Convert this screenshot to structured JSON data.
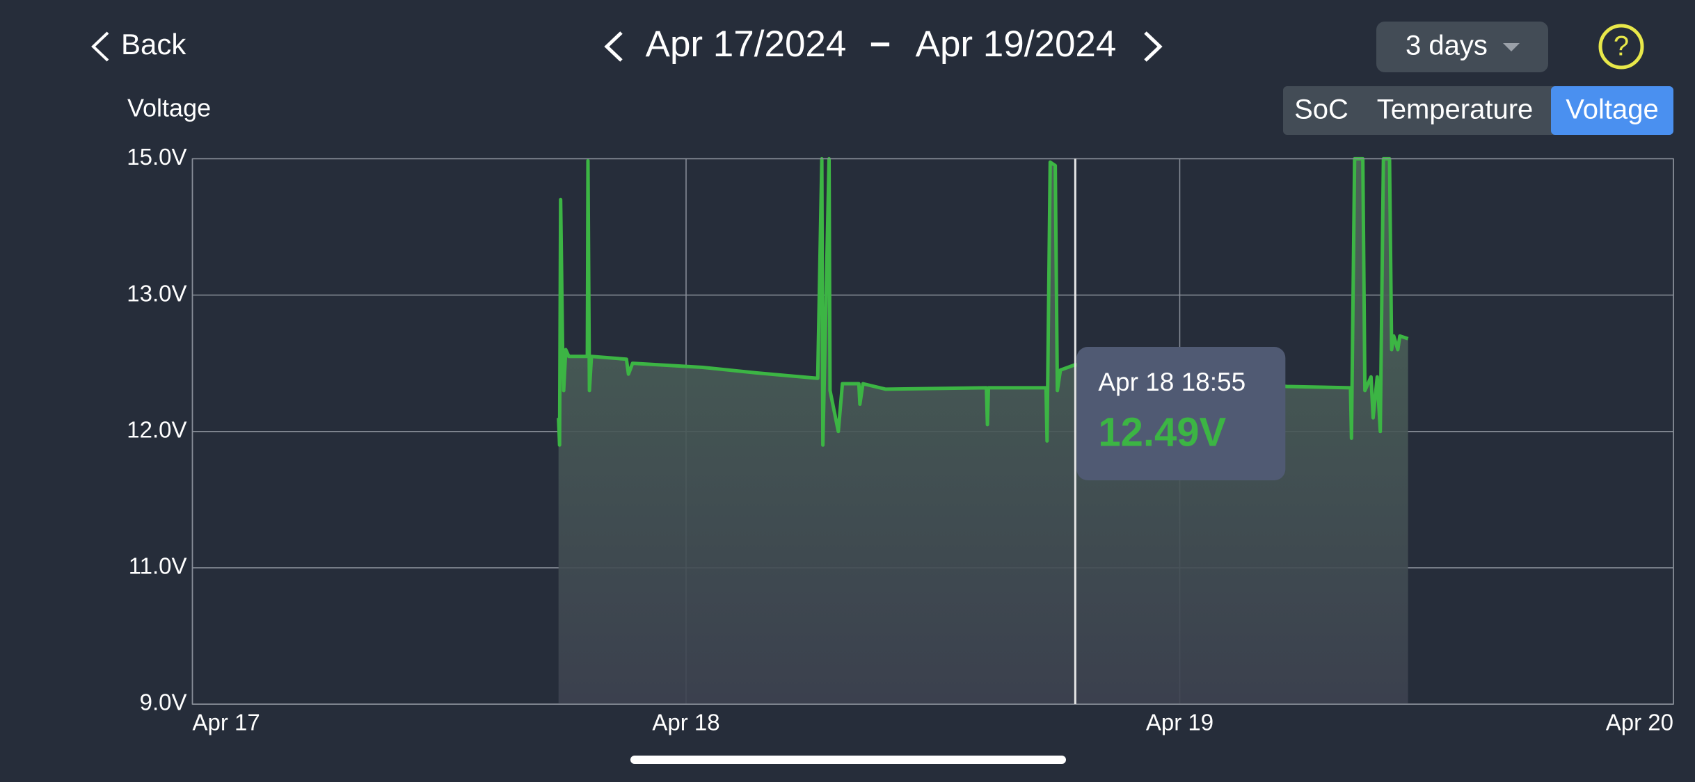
{
  "header": {
    "back": "Back",
    "start_date": "Apr 17/2024",
    "separator": "–",
    "end_date": "Apr 19/2024",
    "range": "3 days",
    "help": "?"
  },
  "tabs": [
    "SoC",
    "Temperature",
    "Voltage"
  ],
  "chart_data": {
    "type": "line",
    "y_label": "Voltage",
    "x": [
      17.8,
      17.85,
      17.9,
      18.0,
      18.05,
      18.15,
      18.3,
      19.2,
      19.23,
      19.3,
      19.4,
      21.1,
      21.2,
      21.4,
      24.8,
      27.4,
      30.4,
      30.6,
      30.65,
      30.95,
      31.0,
      31.4,
      31.6,
      32.4,
      32.45,
      32.6,
      33.7,
      38.6,
      38.65,
      38.7,
      41.5,
      41.55,
      41.7,
      41.95,
      42.05,
      42.2,
      42.92,
      53.2,
      56.3,
      56.35,
      56.5,
      56.9,
      57.0,
      57.3,
      57.4,
      57.6,
      57.75,
      57.9,
      58.2,
      58.3,
      58.4,
      58.6,
      58.7,
      59.1
    ],
    "series": [
      {
        "name": "Voltage",
        "color": "#3cb544",
        "values": [
          12.1,
          11.9,
          14.4,
          12.6,
          12.3,
          12.6,
          12.55,
          12.55,
          14.97,
          12.3,
          12.55,
          12.53,
          12.42,
          12.5,
          12.47,
          12.43,
          12.39,
          15.0,
          11.9,
          15.0,
          12.3,
          12.0,
          12.35,
          12.35,
          12.2,
          12.35,
          12.31,
          12.32,
          12.05,
          12.32,
          12.32,
          11.93,
          14.95,
          14.9,
          12.3,
          12.45,
          12.49,
          12.33,
          12.32,
          11.95,
          15.0,
          15.0,
          12.3,
          12.4,
          12.1,
          12.4,
          12.0,
          15.0,
          15.0,
          12.6,
          12.7,
          12.6,
          12.7,
          12.68
        ]
      }
    ],
    "xlim": [
      0,
      72
    ],
    "xticks": [
      {
        "value": 0,
        "label": "Apr 17"
      },
      {
        "value": 24,
        "label": "Apr 18"
      },
      {
        "value": 48,
        "label": "Apr 19"
      },
      {
        "value": 72,
        "label": "Apr 20"
      }
    ],
    "ylim": [
      9,
      15
    ],
    "yticks": [
      {
        "value": 9,
        "label": "9.0V"
      },
      {
        "value": 11,
        "label": "11.0V"
      },
      {
        "value": 12,
        "label": "12.0V"
      },
      {
        "value": 13,
        "label": "13.0V"
      },
      {
        "value": 15,
        "label": "15.0V"
      }
    ],
    "grid": true,
    "cursor": {
      "x": 42.92,
      "label": "Apr 18 18:55",
      "value": 12.49,
      "value_label": "12.49V"
    }
  }
}
